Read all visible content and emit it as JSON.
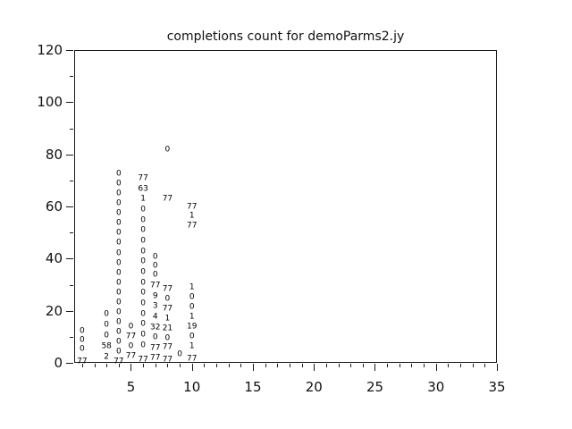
{
  "chart_data": {
    "type": "scatter",
    "title": "completions count for demoParms2.jy",
    "xlabel": "",
    "ylabel": "",
    "xlim": [
      0.35,
      35
    ],
    "ylim": [
      0,
      120
    ],
    "x_major_ticks": [
      5,
      10,
      15,
      20,
      25,
      30,
      35
    ],
    "x_major_tick_labels": [
      "5",
      "10",
      "15",
      "20",
      "25",
      "30",
      "35"
    ],
    "x_minor_tick_step": 1,
    "y_major_ticks": [
      0,
      20,
      40,
      60,
      80,
      100,
      120
    ],
    "y_major_tick_labels": [
      "0",
      "20",
      "40",
      "60",
      "80",
      "100",
      "120"
    ],
    "y_minor_ticks": [
      10,
      30,
      50,
      70,
      90,
      110
    ],
    "grid": false,
    "legend": null,
    "marker_style": "text-label",
    "points": [
      {
        "x": 1,
        "y": 11.9,
        "label": "0"
      },
      {
        "x": 1,
        "y": 8.5,
        "label": "0"
      },
      {
        "x": 1,
        "y": 5.1,
        "label": "0"
      },
      {
        "x": 1,
        "y": 0.5,
        "label": "77"
      },
      {
        "x": 3,
        "y": 18.5,
        "label": "0"
      },
      {
        "x": 3,
        "y": 14.4,
        "label": "0"
      },
      {
        "x": 3,
        "y": 10.2,
        "label": "0"
      },
      {
        "x": 3,
        "y": 6.1,
        "label": "58"
      },
      {
        "x": 3,
        "y": 2.0,
        "label": "2"
      },
      {
        "x": 4,
        "y": 72.4,
        "label": "0"
      },
      {
        "x": 4,
        "y": 68.6,
        "label": "0"
      },
      {
        "x": 4,
        "y": 64.8,
        "label": "0"
      },
      {
        "x": 4,
        "y": 61.0,
        "label": "0"
      },
      {
        "x": 4,
        "y": 57.2,
        "label": "0"
      },
      {
        "x": 4,
        "y": 53.4,
        "label": "0"
      },
      {
        "x": 4,
        "y": 49.6,
        "label": "0"
      },
      {
        "x": 4,
        "y": 45.8,
        "label": "0"
      },
      {
        "x": 4,
        "y": 42.0,
        "label": "0"
      },
      {
        "x": 4,
        "y": 38.2,
        "label": "0"
      },
      {
        "x": 4,
        "y": 34.4,
        "label": "0"
      },
      {
        "x": 4,
        "y": 30.6,
        "label": "0"
      },
      {
        "x": 4,
        "y": 26.8,
        "label": "0"
      },
      {
        "x": 4,
        "y": 23.0,
        "label": "0"
      },
      {
        "x": 4,
        "y": 19.2,
        "label": "0"
      },
      {
        "x": 4,
        "y": 15.4,
        "label": "0"
      },
      {
        "x": 4,
        "y": 11.6,
        "label": "0"
      },
      {
        "x": 4,
        "y": 7.8,
        "label": "0"
      },
      {
        "x": 4,
        "y": 4.0,
        "label": "0"
      },
      {
        "x": 4,
        "y": 0.3,
        "label": "77"
      },
      {
        "x": 5,
        "y": 13.7,
        "label": "0"
      },
      {
        "x": 5,
        "y": 10.0,
        "label": "77"
      },
      {
        "x": 5,
        "y": 6.3,
        "label": "0"
      },
      {
        "x": 5,
        "y": 2.3,
        "label": "77"
      },
      {
        "x": 6,
        "y": 70.6,
        "label": "77"
      },
      {
        "x": 6,
        "y": 66.6,
        "label": "63"
      },
      {
        "x": 6,
        "y": 62.6,
        "label": "1"
      },
      {
        "x": 6,
        "y": 58.6,
        "label": "0"
      },
      {
        "x": 6,
        "y": 54.6,
        "label": "0"
      },
      {
        "x": 6,
        "y": 50.6,
        "label": "0"
      },
      {
        "x": 6,
        "y": 46.6,
        "label": "0"
      },
      {
        "x": 6,
        "y": 42.6,
        "label": "0"
      },
      {
        "x": 6,
        "y": 38.6,
        "label": "0"
      },
      {
        "x": 6,
        "y": 34.6,
        "label": "0"
      },
      {
        "x": 6,
        "y": 30.6,
        "label": "0"
      },
      {
        "x": 6,
        "y": 26.6,
        "label": "0"
      },
      {
        "x": 6,
        "y": 22.6,
        "label": "0"
      },
      {
        "x": 6,
        "y": 18.6,
        "label": "0"
      },
      {
        "x": 6,
        "y": 14.6,
        "label": "0"
      },
      {
        "x": 6,
        "y": 10.6,
        "label": "0"
      },
      {
        "x": 6,
        "y": 6.6,
        "label": "0"
      },
      {
        "x": 6,
        "y": 1.0,
        "label": "77"
      },
      {
        "x": 7,
        "y": 40.6,
        "label": "0"
      },
      {
        "x": 7,
        "y": 37.0,
        "label": "0"
      },
      {
        "x": 7,
        "y": 33.5,
        "label": "0"
      },
      {
        "x": 7,
        "y": 29.5,
        "label": "77"
      },
      {
        "x": 7,
        "y": 25.5,
        "label": "9"
      },
      {
        "x": 7,
        "y": 21.5,
        "label": "3"
      },
      {
        "x": 7,
        "y": 17.5,
        "label": "4"
      },
      {
        "x": 7,
        "y": 13.5,
        "label": "32"
      },
      {
        "x": 7,
        "y": 9.5,
        "label": "0"
      },
      {
        "x": 7,
        "y": 5.5,
        "label": "77"
      },
      {
        "x": 7,
        "y": 1.7,
        "label": "77"
      },
      {
        "x": 8,
        "y": 81.6,
        "label": "0"
      },
      {
        "x": 8,
        "y": 62.6,
        "label": "77"
      },
      {
        "x": 8,
        "y": 28.1,
        "label": "77"
      },
      {
        "x": 8,
        "y": 24.4,
        "label": "0"
      },
      {
        "x": 8,
        "y": 20.6,
        "label": "77"
      },
      {
        "x": 8,
        "y": 16.9,
        "label": "1"
      },
      {
        "x": 8,
        "y": 13.1,
        "label": "21"
      },
      {
        "x": 8,
        "y": 9.4,
        "label": "0"
      },
      {
        "x": 8,
        "y": 5.7,
        "label": "77"
      },
      {
        "x": 8,
        "y": 1.2,
        "label": "77"
      },
      {
        "x": 9,
        "y": 3.0,
        "label": "0"
      },
      {
        "x": 10,
        "y": 59.6,
        "label": "77"
      },
      {
        "x": 10,
        "y": 56.1,
        "label": "1"
      },
      {
        "x": 10,
        "y": 52.5,
        "label": "77"
      },
      {
        "x": 10,
        "y": 28.7,
        "label": "1"
      },
      {
        "x": 10,
        "y": 24.9,
        "label": "0"
      },
      {
        "x": 10,
        "y": 21.2,
        "label": "0"
      },
      {
        "x": 10,
        "y": 17.4,
        "label": "1"
      },
      {
        "x": 10,
        "y": 13.7,
        "label": "19"
      },
      {
        "x": 10,
        "y": 9.9,
        "label": "0"
      },
      {
        "x": 10,
        "y": 6.2,
        "label": "1"
      },
      {
        "x": 10,
        "y": 1.4,
        "label": "77"
      }
    ]
  },
  "colors": {
    "background": "#ffffff",
    "foreground": "#000000",
    "axis": "#1a1a1a"
  }
}
